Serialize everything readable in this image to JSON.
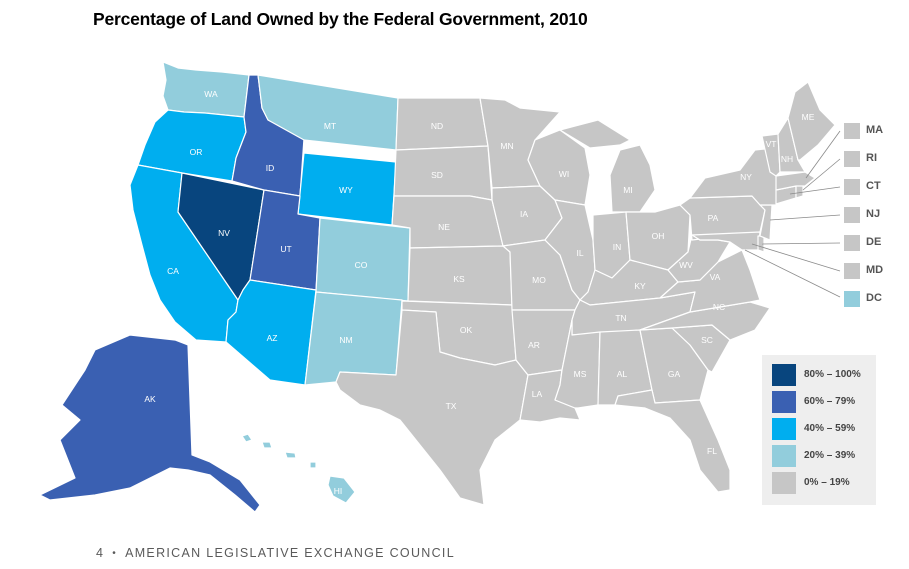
{
  "title": "Percentage of Land Owned by the Federal Government, 2010",
  "footer": {
    "page_number": "4",
    "separator": "•",
    "organization": "AMERICAN LEGISLATIVE EXCHANGE COUNCIL"
  },
  "colors": {
    "80_100": "#08457e",
    "60_79": "#3a60b2",
    "40_59": "#00aeef",
    "20_39": "#92cddc",
    "0_19": "#c6c6c6",
    "border": "#ffffff"
  },
  "legend": [
    {
      "label": "80% – 100%",
      "class": "80_100"
    },
    {
      "label": "60% – 79%",
      "class": "60_79"
    },
    {
      "label": "40% – 59%",
      "class": "40_59"
    },
    {
      "label": "20% – 39%",
      "class": "20_39"
    },
    {
      "label": "0% – 19%",
      "class": "0_19"
    }
  ],
  "states": [
    {
      "abbr": "NV",
      "class": "80_100"
    },
    {
      "abbr": "AK",
      "class": "60_79"
    },
    {
      "abbr": "ID",
      "class": "60_79"
    },
    {
      "abbr": "UT",
      "class": "60_79"
    },
    {
      "abbr": "OR",
      "class": "40_59"
    },
    {
      "abbr": "CA",
      "class": "40_59"
    },
    {
      "abbr": "WY",
      "class": "40_59"
    },
    {
      "abbr": "AZ",
      "class": "40_59"
    },
    {
      "abbr": "WA",
      "class": "20_39"
    },
    {
      "abbr": "MT",
      "class": "20_39"
    },
    {
      "abbr": "CO",
      "class": "20_39"
    },
    {
      "abbr": "NM",
      "class": "20_39"
    },
    {
      "abbr": "HI",
      "class": "20_39"
    },
    {
      "abbr": "DC",
      "class": "20_39"
    },
    {
      "abbr": "ND",
      "class": "0_19"
    },
    {
      "abbr": "SD",
      "class": "0_19"
    },
    {
      "abbr": "NE",
      "class": "0_19"
    },
    {
      "abbr": "KS",
      "class": "0_19"
    },
    {
      "abbr": "OK",
      "class": "0_19"
    },
    {
      "abbr": "TX",
      "class": "0_19"
    },
    {
      "abbr": "MN",
      "class": "0_19"
    },
    {
      "abbr": "IA",
      "class": "0_19"
    },
    {
      "abbr": "MO",
      "class": "0_19"
    },
    {
      "abbr": "AR",
      "class": "0_19"
    },
    {
      "abbr": "LA",
      "class": "0_19"
    },
    {
      "abbr": "WI",
      "class": "0_19"
    },
    {
      "abbr": "IL",
      "class": "0_19"
    },
    {
      "abbr": "MS",
      "class": "0_19"
    },
    {
      "abbr": "MI",
      "class": "0_19"
    },
    {
      "abbr": "IN",
      "class": "0_19"
    },
    {
      "abbr": "OH",
      "class": "0_19"
    },
    {
      "abbr": "KY",
      "class": "0_19"
    },
    {
      "abbr": "TN",
      "class": "0_19"
    },
    {
      "abbr": "AL",
      "class": "0_19"
    },
    {
      "abbr": "GA",
      "class": "0_19"
    },
    {
      "abbr": "FL",
      "class": "0_19"
    },
    {
      "abbr": "SC",
      "class": "0_19"
    },
    {
      "abbr": "NC",
      "class": "0_19"
    },
    {
      "abbr": "VA",
      "class": "0_19"
    },
    {
      "abbr": "WV",
      "class": "0_19"
    },
    {
      "abbr": "PA",
      "class": "0_19"
    },
    {
      "abbr": "NY",
      "class": "0_19"
    },
    {
      "abbr": "VT",
      "class": "0_19"
    },
    {
      "abbr": "NH",
      "class": "0_19"
    },
    {
      "abbr": "ME",
      "class": "0_19"
    },
    {
      "abbr": "MA",
      "class": "0_19"
    },
    {
      "abbr": "RI",
      "class": "0_19"
    },
    {
      "abbr": "CT",
      "class": "0_19"
    },
    {
      "abbr": "NJ",
      "class": "0_19"
    },
    {
      "abbr": "DE",
      "class": "0_19"
    },
    {
      "abbr": "MD",
      "class": "0_19"
    }
  ],
  "small_states_callout": [
    "MA",
    "RI",
    "CT",
    "NJ",
    "DE",
    "MD",
    "DC"
  ]
}
